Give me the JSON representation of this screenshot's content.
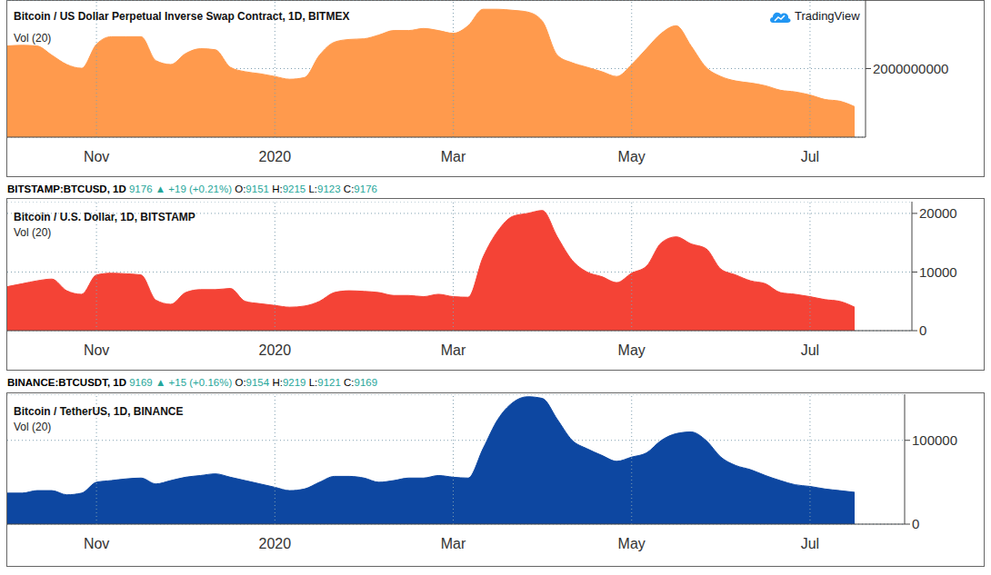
{
  "chart_data": [
    {
      "type": "area",
      "title": "Bitcoin / US Dollar Perpetual Inverse Swap Contract, 1D, BITMEX",
      "subtitle": "Vol (20)",
      "annotation": "TradingView",
      "categories": [
        null,
        null,
        null,
        null,
        null,
        null,
        "Nov",
        null,
        null,
        null,
        null,
        null,
        null,
        null,
        null,
        null,
        null,
        null,
        "2020",
        null,
        null,
        null,
        null,
        null,
        null,
        null,
        null,
        null,
        null,
        null,
        "Mar",
        null,
        null,
        null,
        null,
        null,
        null,
        null,
        null,
        null,
        null,
        null,
        "May",
        null,
        null,
        null,
        null,
        null,
        null,
        null,
        null,
        null,
        null,
        null,
        "Jul",
        null,
        null,
        null
      ],
      "values": [
        2660000000,
        2680000000,
        2660000000,
        2390000000,
        2120000000,
        2010000000,
        2710000000,
        2930000000,
        2930000000,
        2930000000,
        2230000000,
        2120000000,
        2440000000,
        2580000000,
        2550000000,
        2040000000,
        1910000000,
        1850000000,
        1770000000,
        1690000000,
        1740000000,
        2390000000,
        2770000000,
        2850000000,
        2870000000,
        2980000000,
        3110000000,
        3110000000,
        3170000000,
        3110000000,
        3030000000,
        3250000000,
        3730000000,
        3730000000,
        3700000000,
        3650000000,
        3380000000,
        2390000000,
        2170000000,
        2040000000,
        1910000000,
        1770000000,
        2120000000,
        2580000000,
        3030000000,
        3250000000,
        2660000000,
        2040000000,
        1770000000,
        1640000000,
        1580000000,
        1500000000,
        1370000000,
        1320000000,
        1230000000,
        1100000000,
        1050000000,
        890000000
      ],
      "color": "#FF9A4D",
      "ylim": [
        0,
        4000000000
      ],
      "yticks": [
        2000000000
      ],
      "grid": true
    },
    {
      "type": "area",
      "title": "Bitcoin / U.S. Dollar, 1D, BITSTAMP",
      "subtitle": "Vol (20)",
      "header": {
        "symbol": "BITSTAMP:BTCUSD, 1D",
        "quote": "9176 ▲ +19 (+0.21%)",
        "ohlc": [
          {
            "label": "O:",
            "value": "9151"
          },
          {
            "label": "H:",
            "value": "9215"
          },
          {
            "label": "L:",
            "value": "9123"
          },
          {
            "label": "C:",
            "value": "9176"
          }
        ]
      },
      "categories": [
        null,
        null,
        null,
        null,
        null,
        null,
        "Nov",
        null,
        null,
        null,
        null,
        null,
        null,
        null,
        null,
        null,
        null,
        null,
        "2020",
        null,
        null,
        null,
        null,
        null,
        null,
        null,
        null,
        null,
        null,
        null,
        "Mar",
        null,
        null,
        null,
        null,
        null,
        null,
        null,
        null,
        null,
        null,
        null,
        "May",
        null,
        null,
        null,
        null,
        null,
        null,
        null,
        null,
        null,
        null,
        null,
        "Jul",
        null,
        null,
        null
      ],
      "values": [
        7500,
        8000,
        8500,
        8800,
        6800,
        6200,
        9500,
        9800,
        9700,
        9500,
        5200,
        4500,
        6500,
        7000,
        7000,
        7200,
        5000,
        4600,
        4300,
        4000,
        4200,
        5000,
        6500,
        6800,
        6700,
        6500,
        6000,
        6000,
        5800,
        6200,
        5800,
        5700,
        12500,
        17000,
        19500,
        20000,
        20500,
        16000,
        12000,
        10000,
        9200,
        8200,
        9800,
        11000,
        15000,
        16000,
        14800,
        14000,
        10500,
        9500,
        8500,
        8000,
        6500,
        6200,
        5800,
        5300,
        5000,
        4000
      ],
      "color": "#F44336",
      "ylim": [
        0,
        22000
      ],
      "yticks": [
        0,
        10000,
        20000
      ],
      "grid": true
    },
    {
      "type": "area",
      "title": "Bitcoin / TetherUS, 1D, BINANCE",
      "subtitle": "Vol (20)",
      "header": {
        "symbol": "BINANCE:BTCUSDT, 1D",
        "quote": "9169 ▲ +15 (+0.16%)",
        "ohlc": [
          {
            "label": "O:",
            "value": "9154"
          },
          {
            "label": "H:",
            "value": "9219"
          },
          {
            "label": "L:",
            "value": "9121"
          },
          {
            "label": "C:",
            "value": "9169"
          }
        ]
      },
      "categories": [
        null,
        null,
        null,
        null,
        null,
        null,
        "Nov",
        null,
        null,
        null,
        null,
        null,
        null,
        null,
        null,
        null,
        null,
        null,
        "2020",
        null,
        null,
        null,
        null,
        null,
        null,
        null,
        null,
        null,
        null,
        null,
        "Mar",
        null,
        null,
        null,
        null,
        null,
        null,
        null,
        null,
        null,
        null,
        null,
        "May",
        null,
        null,
        null,
        null,
        null,
        null,
        null,
        null,
        null,
        null,
        null,
        "Jul",
        null,
        null,
        null
      ],
      "values": [
        37000,
        37000,
        40000,
        40000,
        35000,
        37000,
        50000,
        52000,
        54000,
        55000,
        48000,
        52000,
        56000,
        58000,
        60000,
        56000,
        52000,
        48000,
        44000,
        40000,
        42000,
        50000,
        57000,
        57000,
        55000,
        50000,
        52000,
        55000,
        55000,
        58000,
        56000,
        55000,
        90000,
        125000,
        145000,
        152000,
        150000,
        125000,
        100000,
        90000,
        82000,
        75000,
        80000,
        85000,
        100000,
        108000,
        110000,
        100000,
        80000,
        70000,
        65000,
        58000,
        52000,
        47000,
        45000,
        42000,
        40000,
        38000
      ],
      "color": "#0D47A1",
      "ylim": [
        0,
        155000
      ],
      "yticks": [
        0,
        100000
      ],
      "grid": true
    }
  ]
}
